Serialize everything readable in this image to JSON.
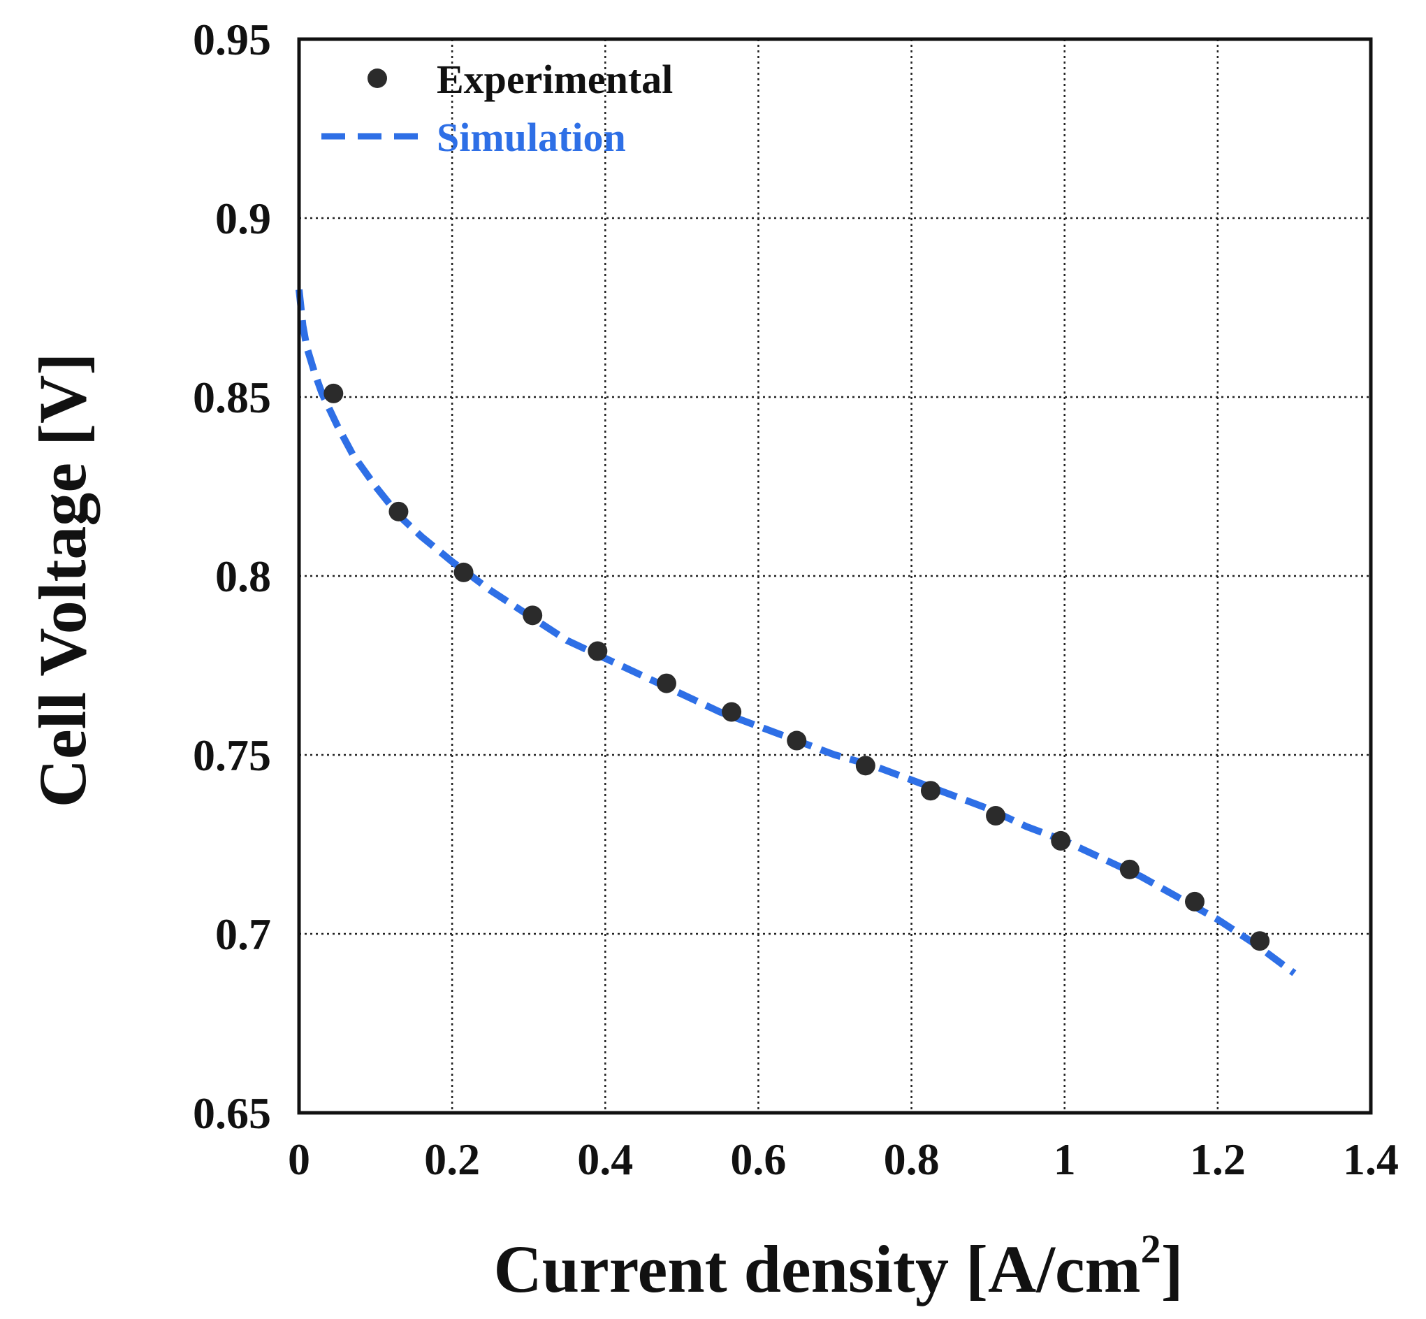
{
  "chart_data": {
    "type": "line",
    "title": "",
    "xlabel": "Current density [A/cm",
    "xlabel_superscript": "2",
    "xlabel_suffix": "]",
    "ylabel": "Cell Voltage [V]",
    "xlim": [
      0,
      1.4
    ],
    "ylim": [
      0.65,
      0.95
    ],
    "grid": true,
    "legend_position": "top-left",
    "x_ticks": [
      "0",
      "0.2",
      "0.4",
      "0.6",
      "0.8",
      "1",
      "1.2",
      "1.4"
    ],
    "y_ticks": [
      "0.65",
      "0.7",
      "0.75",
      "0.8",
      "0.85",
      "0.9",
      "0.95"
    ],
    "x_tick_values": [
      0,
      0.2,
      0.4,
      0.6,
      0.8,
      1.0,
      1.2,
      1.4
    ],
    "y_tick_values": [
      0.65,
      0.7,
      0.75,
      0.8,
      0.85,
      0.9,
      0.95
    ],
    "series": [
      {
        "name": "Experimental",
        "kind": "scatter",
        "color": "#2b2b2b",
        "x": [
          0.045,
          0.13,
          0.215,
          0.305,
          0.39,
          0.48,
          0.565,
          0.65,
          0.74,
          0.825,
          0.91,
          0.995,
          1.085,
          1.17,
          1.255
        ],
        "y": [
          0.851,
          0.818,
          0.801,
          0.789,
          0.779,
          0.77,
          0.762,
          0.754,
          0.747,
          0.74,
          0.733,
          0.726,
          0.718,
          0.709,
          0.698
        ]
      },
      {
        "name": "Simulation",
        "kind": "dashed-line",
        "color": "#2e6fe6",
        "x": [
          0.0,
          0.005,
          0.01,
          0.02,
          0.03,
          0.05,
          0.07,
          0.1,
          0.13,
          0.16,
          0.2,
          0.25,
          0.3,
          0.35,
          0.4,
          0.45,
          0.5,
          0.55,
          0.6,
          0.65,
          0.7,
          0.75,
          0.8,
          0.85,
          0.9,
          0.95,
          1.0,
          1.05,
          1.1,
          1.15,
          1.2,
          1.25,
          1.3
        ],
        "y": [
          0.88,
          0.87,
          0.864,
          0.857,
          0.851,
          0.842,
          0.834,
          0.825,
          0.817,
          0.811,
          0.804,
          0.796,
          0.789,
          0.782,
          0.777,
          0.772,
          0.767,
          0.762,
          0.758,
          0.754,
          0.75,
          0.747,
          0.743,
          0.739,
          0.735,
          0.73,
          0.726,
          0.721,
          0.716,
          0.71,
          0.704,
          0.697,
          0.689
        ]
      }
    ]
  }
}
